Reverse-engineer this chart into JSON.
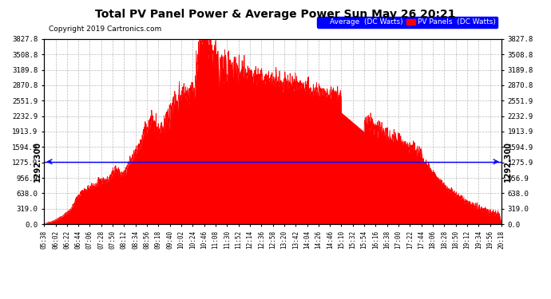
{
  "title": "Total PV Panel Power & Average Power Sun May 26 20:21",
  "copyright": "Copyright 2019 Cartronics.com",
  "avg_value": 1292.3,
  "avg_label": "1292.300",
  "ymax": 3827.8,
  "yticks": [
    0.0,
    319.0,
    638.0,
    956.9,
    1275.9,
    1594.9,
    1913.9,
    2232.9,
    2551.9,
    2870.8,
    3189.8,
    3508.8,
    3827.8
  ],
  "legend_avg_label": "Average  (DC Watts)",
  "legend_pv_label": "PV Panels  (DC Watts)",
  "background_color": "#ffffff",
  "grid_color": "#aaaaaa",
  "fill_color": "#ff0000",
  "avg_line_color": "#0000ff",
  "xtick_labels": [
    "05:38",
    "06:02",
    "06:22",
    "06:44",
    "07:06",
    "07:28",
    "07:50",
    "08:12",
    "08:34",
    "08:56",
    "09:18",
    "09:40",
    "10:02",
    "10:24",
    "10:46",
    "11:08",
    "11:30",
    "11:52",
    "12:14",
    "12:36",
    "12:58",
    "13:20",
    "13:42",
    "14:04",
    "14:26",
    "14:46",
    "15:10",
    "15:32",
    "15:54",
    "16:16",
    "16:38",
    "17:00",
    "17:22",
    "17:44",
    "18:06",
    "18:28",
    "18:50",
    "19:12",
    "19:34",
    "19:56",
    "20:18"
  ],
  "pv_data_y": [
    20,
    40,
    70,
    110,
    170,
    240,
    330,
    500,
    650,
    700,
    760,
    820,
    900,
    860,
    950,
    1050,
    1150,
    1000,
    1200,
    1350,
    1500,
    1700,
    1900,
    2050,
    2100,
    1900,
    2000,
    2200,
    2400,
    2500,
    2600,
    2700,
    2800,
    2900,
    3827,
    3750,
    3600,
    3500,
    3400,
    3350,
    3300,
    3250,
    3200,
    3180,
    3100,
    3050,
    3020,
    3000,
    2980,
    2950,
    2900,
    2870,
    2850,
    2820,
    2800,
    2780,
    2750,
    2700,
    2680,
    2650,
    2600,
    2580,
    2550,
    2500,
    2450,
    2400,
    2300,
    2250,
    2200,
    2150,
    2100,
    2050,
    2000,
    1950,
    1900,
    1850,
    1800,
    1750,
    1700,
    1650,
    1600,
    1550,
    1500,
    1450,
    1400,
    1350,
    1300,
    1250,
    1200,
    1150,
    1050,
    950,
    850,
    750,
    650,
    550,
    450,
    350,
    250,
    150,
    60
  ]
}
